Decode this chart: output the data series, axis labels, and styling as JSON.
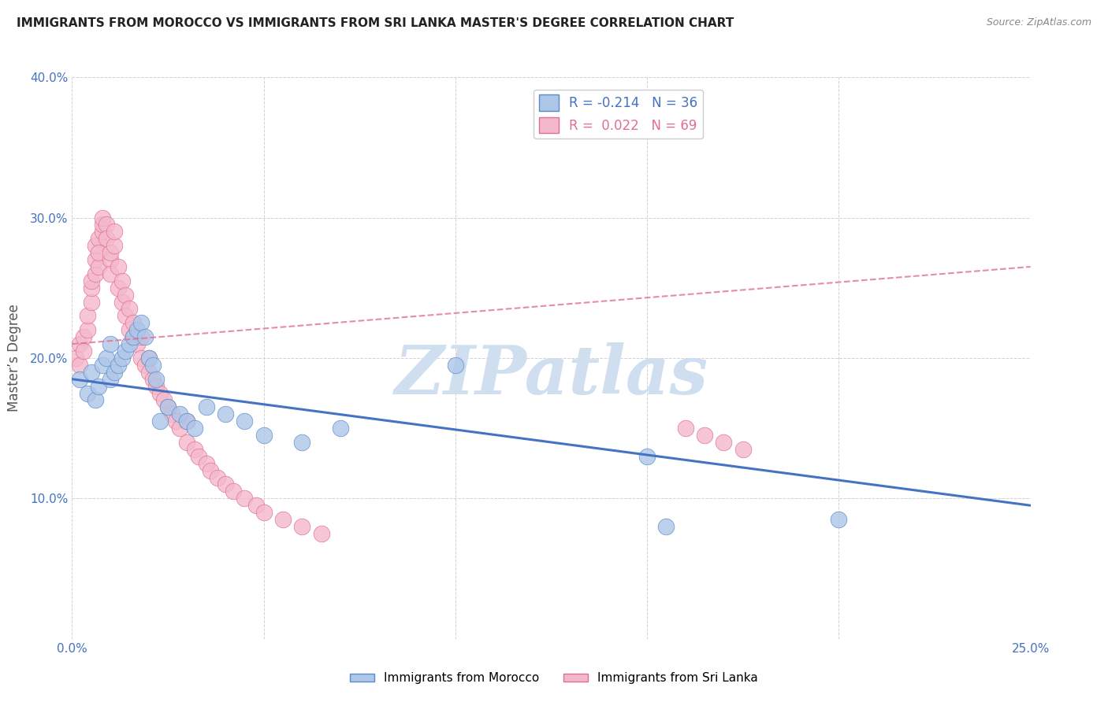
{
  "title": "IMMIGRANTS FROM MOROCCO VS IMMIGRANTS FROM SRI LANKA MASTER'S DEGREE CORRELATION CHART",
  "source": "Source: ZipAtlas.com",
  "ylabel": "Master’s Degree",
  "xlim": [
    0.0,
    0.25
  ],
  "ylim": [
    0.0,
    0.4
  ],
  "xticks": [
    0.0,
    0.05,
    0.1,
    0.15,
    0.2,
    0.25
  ],
  "yticks": [
    0.0,
    0.1,
    0.2,
    0.3,
    0.4
  ],
  "morocco_R": -0.214,
  "morocco_N": 36,
  "srilanka_R": 0.022,
  "srilanka_N": 69,
  "morocco_color": "#aec6e8",
  "morocco_edge_color": "#5b8cc8",
  "morocco_line_color": "#4472c4",
  "srilanka_color": "#f4b8cc",
  "srilanka_edge_color": "#e0708a",
  "srilanka_line_color": "#e07090",
  "watermark_text": "ZIPatlas",
  "watermark_color": "#d0dff0",
  "background_color": "#ffffff",
  "morocco_scatter_x": [
    0.002,
    0.004,
    0.005,
    0.006,
    0.007,
    0.008,
    0.009,
    0.01,
    0.01,
    0.011,
    0.012,
    0.013,
    0.014,
    0.015,
    0.016,
    0.017,
    0.018,
    0.019,
    0.02,
    0.021,
    0.022,
    0.023,
    0.025,
    0.028,
    0.03,
    0.032,
    0.035,
    0.04,
    0.045,
    0.05,
    0.06,
    0.07,
    0.1,
    0.15,
    0.2,
    0.155
  ],
  "morocco_scatter_y": [
    0.185,
    0.175,
    0.19,
    0.17,
    0.18,
    0.195,
    0.2,
    0.21,
    0.185,
    0.19,
    0.195,
    0.2,
    0.205,
    0.21,
    0.215,
    0.22,
    0.225,
    0.215,
    0.2,
    0.195,
    0.185,
    0.155,
    0.165,
    0.16,
    0.155,
    0.15,
    0.165,
    0.16,
    0.155,
    0.145,
    0.14,
    0.15,
    0.195,
    0.13,
    0.085,
    0.08
  ],
  "srilanka_scatter_x": [
    0.001,
    0.002,
    0.002,
    0.003,
    0.003,
    0.004,
    0.004,
    0.005,
    0.005,
    0.005,
    0.006,
    0.006,
    0.006,
    0.007,
    0.007,
    0.007,
    0.008,
    0.008,
    0.008,
    0.009,
    0.009,
    0.01,
    0.01,
    0.01,
    0.011,
    0.011,
    0.012,
    0.012,
    0.013,
    0.013,
    0.014,
    0.014,
    0.015,
    0.015,
    0.016,
    0.016,
    0.017,
    0.018,
    0.018,
    0.019,
    0.02,
    0.02,
    0.021,
    0.022,
    0.023,
    0.024,
    0.025,
    0.026,
    0.027,
    0.028,
    0.03,
    0.03,
    0.032,
    0.033,
    0.035,
    0.036,
    0.038,
    0.04,
    0.042,
    0.045,
    0.048,
    0.05,
    0.055,
    0.06,
    0.065,
    0.16,
    0.165,
    0.17,
    0.175
  ],
  "srilanka_scatter_y": [
    0.2,
    0.195,
    0.21,
    0.215,
    0.205,
    0.22,
    0.23,
    0.24,
    0.25,
    0.255,
    0.26,
    0.27,
    0.28,
    0.265,
    0.285,
    0.275,
    0.29,
    0.295,
    0.3,
    0.295,
    0.285,
    0.27,
    0.26,
    0.275,
    0.28,
    0.29,
    0.25,
    0.265,
    0.24,
    0.255,
    0.23,
    0.245,
    0.22,
    0.235,
    0.215,
    0.225,
    0.21,
    0.2,
    0.215,
    0.195,
    0.19,
    0.2,
    0.185,
    0.18,
    0.175,
    0.17,
    0.165,
    0.16,
    0.155,
    0.15,
    0.14,
    0.155,
    0.135,
    0.13,
    0.125,
    0.12,
    0.115,
    0.11,
    0.105,
    0.1,
    0.095,
    0.09,
    0.085,
    0.08,
    0.075,
    0.15,
    0.145,
    0.14,
    0.135
  ],
  "morocco_trendline_x": [
    0.0,
    0.25
  ],
  "morocco_trendline_y": [
    0.185,
    0.095
  ],
  "srilanka_trendline_x": [
    0.0,
    0.25
  ],
  "srilanka_trendline_y": [
    0.21,
    0.265
  ]
}
